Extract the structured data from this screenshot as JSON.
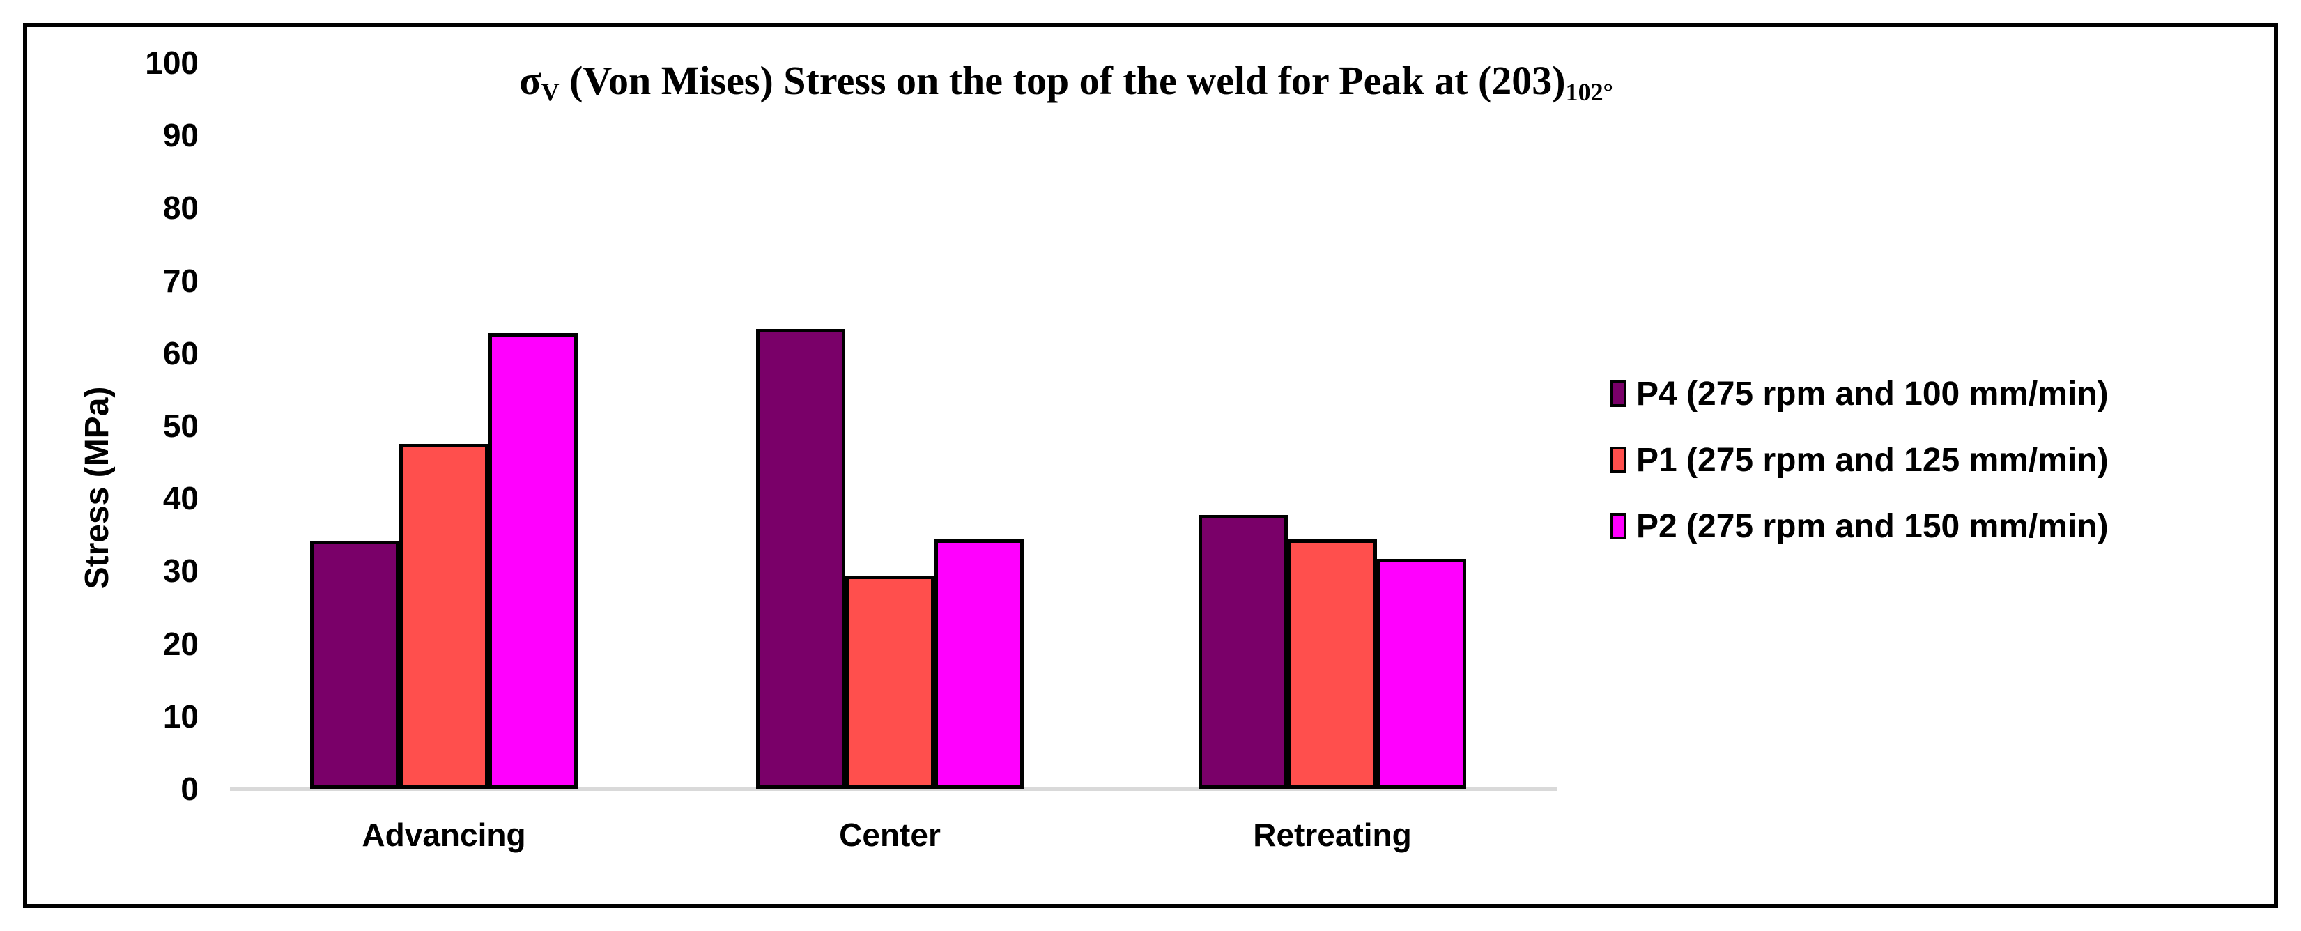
{
  "chart_data": {
    "type": "bar",
    "title": "σV (Von Mises) Stress on the top of the weld for Peak at (203)102°",
    "title_parts": {
      "sigma": "σ",
      "sigma_sub": "V",
      "middle": " (Von Mises) Stress on the top of the weld for Peak at (203)",
      "peak_sub": "102°"
    },
    "xlabel": "",
    "ylabel": "Stress (MPa)",
    "ylim": [
      0,
      100
    ],
    "y_ticks": [
      0,
      10,
      20,
      30,
      40,
      50,
      60,
      70,
      80,
      90,
      100
    ],
    "grid": false,
    "legend_position": "right",
    "categories": [
      "Advancing",
      "Center",
      "Retreating"
    ],
    "series": [
      {
        "name": "P4 (275 rpm and 100 mm/min)",
        "color": "#7A0069",
        "values": [
          34.2,
          63.3,
          37.7
        ]
      },
      {
        "name": "P1 (275 rpm and 125 mm/min)",
        "color": "#FF4F4D",
        "values": [
          47.5,
          29.4,
          34.4
        ]
      },
      {
        "name": "P2 (275 rpm and 150 mm/min)",
        "color": "#FF00FE",
        "values": [
          62.8,
          34.4,
          31.7
        ]
      }
    ],
    "bar_border_color": "#000000",
    "axis_line_color": "#D9D9D9"
  }
}
